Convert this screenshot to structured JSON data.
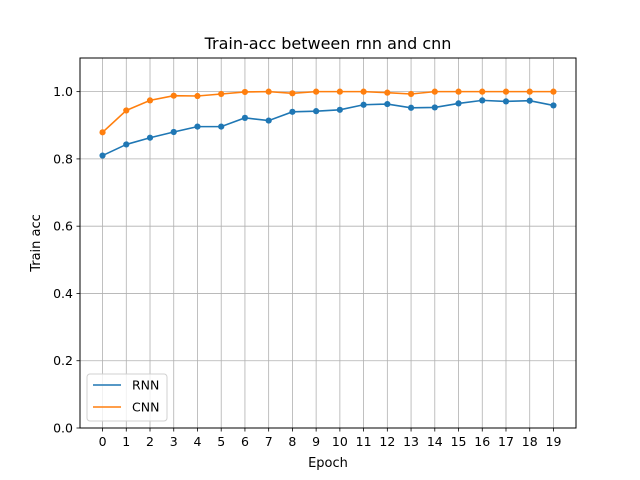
{
  "chart_data": {
    "type": "line",
    "title": "Train-acc between rnn and cnn",
    "xlabel": "Epoch",
    "ylabel": "Train acc",
    "x": [
      0,
      1,
      2,
      3,
      4,
      5,
      6,
      7,
      8,
      9,
      10,
      11,
      12,
      13,
      14,
      15,
      16,
      17,
      18,
      19
    ],
    "xticks": [
      "0",
      "1",
      "2",
      "3",
      "4",
      "5",
      "6",
      "7",
      "8",
      "9",
      "10",
      "11",
      "12",
      "13",
      "14",
      "15",
      "16",
      "17",
      "18",
      "19"
    ],
    "xlim": [
      -0.95,
      19.95
    ],
    "ylim": [
      0.0,
      1.1
    ],
    "yticks": [
      "0.0",
      "0.2",
      "0.4",
      "0.6",
      "0.8",
      "1.0"
    ],
    "grid": true,
    "legend_position": "lower-left",
    "series": [
      {
        "name": "RNN",
        "color": "#1f77b4",
        "values": [
          0.81,
          0.843,
          0.863,
          0.88,
          0.896,
          0.896,
          0.922,
          0.914,
          0.94,
          0.942,
          0.946,
          0.961,
          0.963,
          0.952,
          0.953,
          0.965,
          0.974,
          0.971,
          0.973,
          0.959
        ]
      },
      {
        "name": "CNN",
        "color": "#ff7f0e",
        "values": [
          0.879,
          0.944,
          0.974,
          0.988,
          0.987,
          0.993,
          0.999,
          1.0,
          0.995,
          1.0,
          1.0,
          1.0,
          0.997,
          0.993,
          1.0,
          1.0,
          1.0,
          1.0,
          1.0,
          1.0
        ]
      }
    ]
  }
}
